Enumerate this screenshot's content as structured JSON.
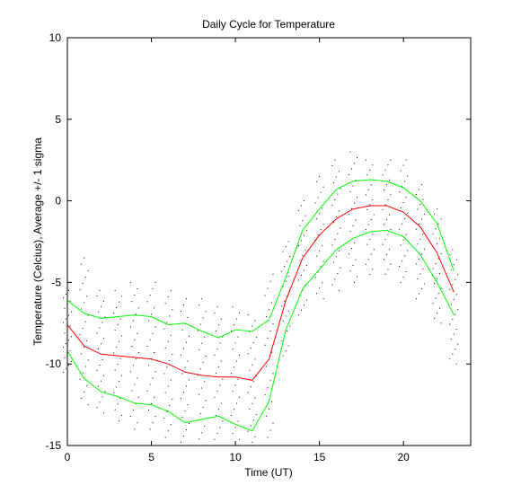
{
  "chart_data": {
    "type": "line",
    "title": "Daily Cycle for Temperature",
    "xlabel": "Time (UT)",
    "ylabel": "Temperature (Celcius), Average +/- 1 sigma",
    "xlim": [
      0,
      24
    ],
    "ylim": [
      -15,
      10
    ],
    "xticks": [
      0,
      5,
      10,
      15,
      20
    ],
    "yticks": [
      -15,
      -10,
      -5,
      0,
      5,
      10
    ],
    "grid": false,
    "x": [
      0,
      1,
      2,
      3,
      4,
      5,
      6,
      7,
      8,
      9,
      10,
      11,
      12,
      13,
      14,
      15,
      16,
      17,
      18,
      19,
      20,
      21,
      22,
      23
    ],
    "series": [
      {
        "color": "#ff0000",
        "values": [
          -7.6,
          -8.9,
          -9.4,
          -9.5,
          -9.6,
          -9.7,
          -10.0,
          -10.5,
          -10.7,
          -10.8,
          -10.8,
          -11.0,
          -9.7,
          -6.1,
          -3.5,
          -2.1,
          -1.1,
          -0.5,
          -0.3,
          -0.3,
          -0.7,
          -1.6,
          -3.2,
          -5.6
        ]
      },
      {
        "color": "#00ff00",
        "values": [
          -6.1,
          -6.9,
          -7.2,
          -7.1,
          -7.0,
          -7.1,
          -7.6,
          -7.5,
          -8.0,
          -8.4,
          -7.9,
          -8.0,
          -7.3,
          -4.7,
          -1.8,
          -0.5,
          0.7,
          1.2,
          1.3,
          1.2,
          0.8,
          0.0,
          -1.4,
          -4.3
        ]
      },
      {
        "color": "#00ff00",
        "values": [
          -9.2,
          -10.9,
          -11.7,
          -12.0,
          -12.4,
          -12.5,
          -12.9,
          -13.6,
          -13.4,
          -13.2,
          -13.7,
          -14.1,
          -12.3,
          -7.9,
          -5.4,
          -4.2,
          -3.0,
          -2.3,
          -1.9,
          -1.8,
          -2.2,
          -3.3,
          -5.0,
          -7.0
        ]
      }
    ],
    "scatter": {
      "color": "#000000",
      "min": [
        -10.5,
        -12.5,
        -13.0,
        -13.5,
        -14.0,
        -14.0,
        -14.5,
        -14.8,
        -15.0,
        -15.0,
        -15.0,
        -14.8,
        -14.5,
        -9.5,
        -7.0,
        -6.0,
        -5.5,
        -5.0,
        -4.5,
        -4.5,
        -5.0,
        -6.0,
        -7.5,
        -10.0
      ],
      "max": [
        -5.5,
        -3.5,
        -5.5,
        -5.5,
        -5.0,
        -5.0,
        -5.5,
        -6.0,
        -6.0,
        -6.5,
        -6.5,
        -7.0,
        -4.5,
        -2.5,
        0.0,
        1.5,
        2.5,
        3.0,
        2.5,
        2.5,
        2.5,
        1.0,
        -0.5,
        -3.0
      ]
    }
  }
}
